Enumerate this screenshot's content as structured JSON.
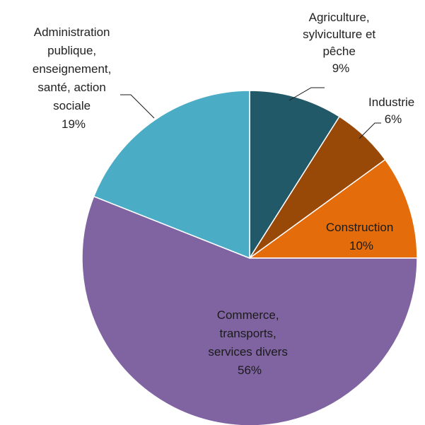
{
  "chart_data": {
    "type": "pie",
    "title": "",
    "start_angle_deg": 0,
    "direction": "clockwise",
    "slices": [
      {
        "lines": [
          "Agriculture,",
          "sylviculture et",
          "pêche"
        ],
        "value_label": "9%",
        "value": 9,
        "color": "#215968"
      },
      {
        "lines": [
          "Industrie"
        ],
        "value_label": "6%",
        "value": 6,
        "color": "#984807"
      },
      {
        "lines": [
          "Construction"
        ],
        "value_label": "10%",
        "value": 10,
        "color": "#E46C0A"
      },
      {
        "lines": [
          "Commerce,",
          "transports,",
          "services divers"
        ],
        "value_label": "56%",
        "value": 56,
        "color": "#8064A2"
      },
      {
        "lines": [
          "Administration",
          "publique,",
          "enseignement,",
          "santé, action",
          "sociale"
        ],
        "value_label": "19%",
        "value": 19,
        "color": "#4BACC6"
      }
    ]
  }
}
